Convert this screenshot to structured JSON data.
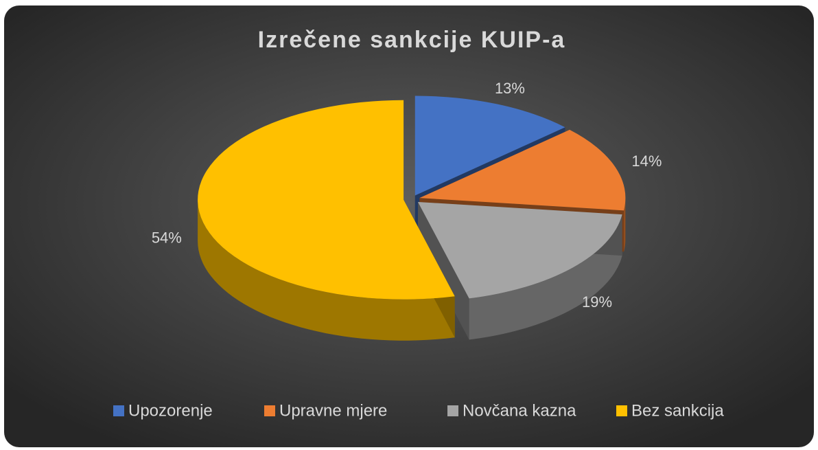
{
  "chart_data": {
    "type": "pie",
    "title": "Izrečene sankcije KUIP-a",
    "categories": [
      "Upozorenje",
      "Upravne mjere",
      "Novčana kazna",
      "Bez sankcija"
    ],
    "values": [
      13,
      14,
      19,
      54
    ],
    "value_labels": [
      "13%",
      "14%",
      "19%",
      "54%"
    ],
    "colors": [
      "#4472c4",
      "#ed7d31",
      "#a5a5a5",
      "#ffc000"
    ],
    "legend": "bottom"
  }
}
